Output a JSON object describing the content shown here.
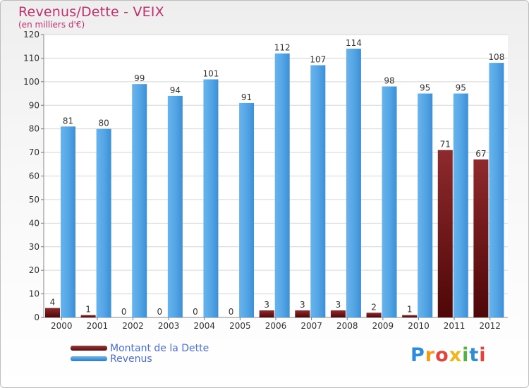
{
  "header": {
    "title": "Revenus/Dette - VEIX",
    "subtitle": "(en milliers d'€)"
  },
  "chart_data": {
    "type": "bar",
    "title": "Revenus/Dette - VEIX",
    "ylabel": "(en milliers d'€)",
    "xlabel": "",
    "categories": [
      "2000",
      "2001",
      "2002",
      "2003",
      "2004",
      "2005",
      "2006",
      "2007",
      "2008",
      "2009",
      "2010",
      "2011",
      "2012"
    ],
    "series": [
      {
        "name": "Montant de la Dette",
        "color": "#6a0f10",
        "values": [
          4,
          1,
          0,
          0,
          0,
          0,
          3,
          3,
          3,
          2,
          1,
          71,
          67
        ]
      },
      {
        "name": "Revenus",
        "color": "#3d8fd6",
        "values": [
          81,
          80,
          99,
          94,
          101,
          91,
          112,
          107,
          114,
          98,
          95,
          95,
          108
        ]
      }
    ],
    "ylim": [
      0,
      120
    ],
    "yticks": [
      0,
      10,
      20,
      30,
      40,
      50,
      60,
      70,
      80,
      90,
      100,
      110,
      120
    ],
    "grid": true,
    "legend": "bottom-left"
  },
  "legend": {
    "items": [
      {
        "label": "Montant de la Dette",
        "color": "#6a0f10"
      },
      {
        "label": "Revenus",
        "color": "#3d8fd6"
      }
    ]
  },
  "brand": {
    "letters": [
      "P",
      "r",
      "o",
      "x",
      "i",
      "t",
      "i"
    ],
    "colors": [
      "#2f8ad8",
      "#f29a19",
      "#e3433d",
      "#f0b51c",
      "#56b04a",
      "#2f8ad8",
      "#e3433d"
    ]
  }
}
